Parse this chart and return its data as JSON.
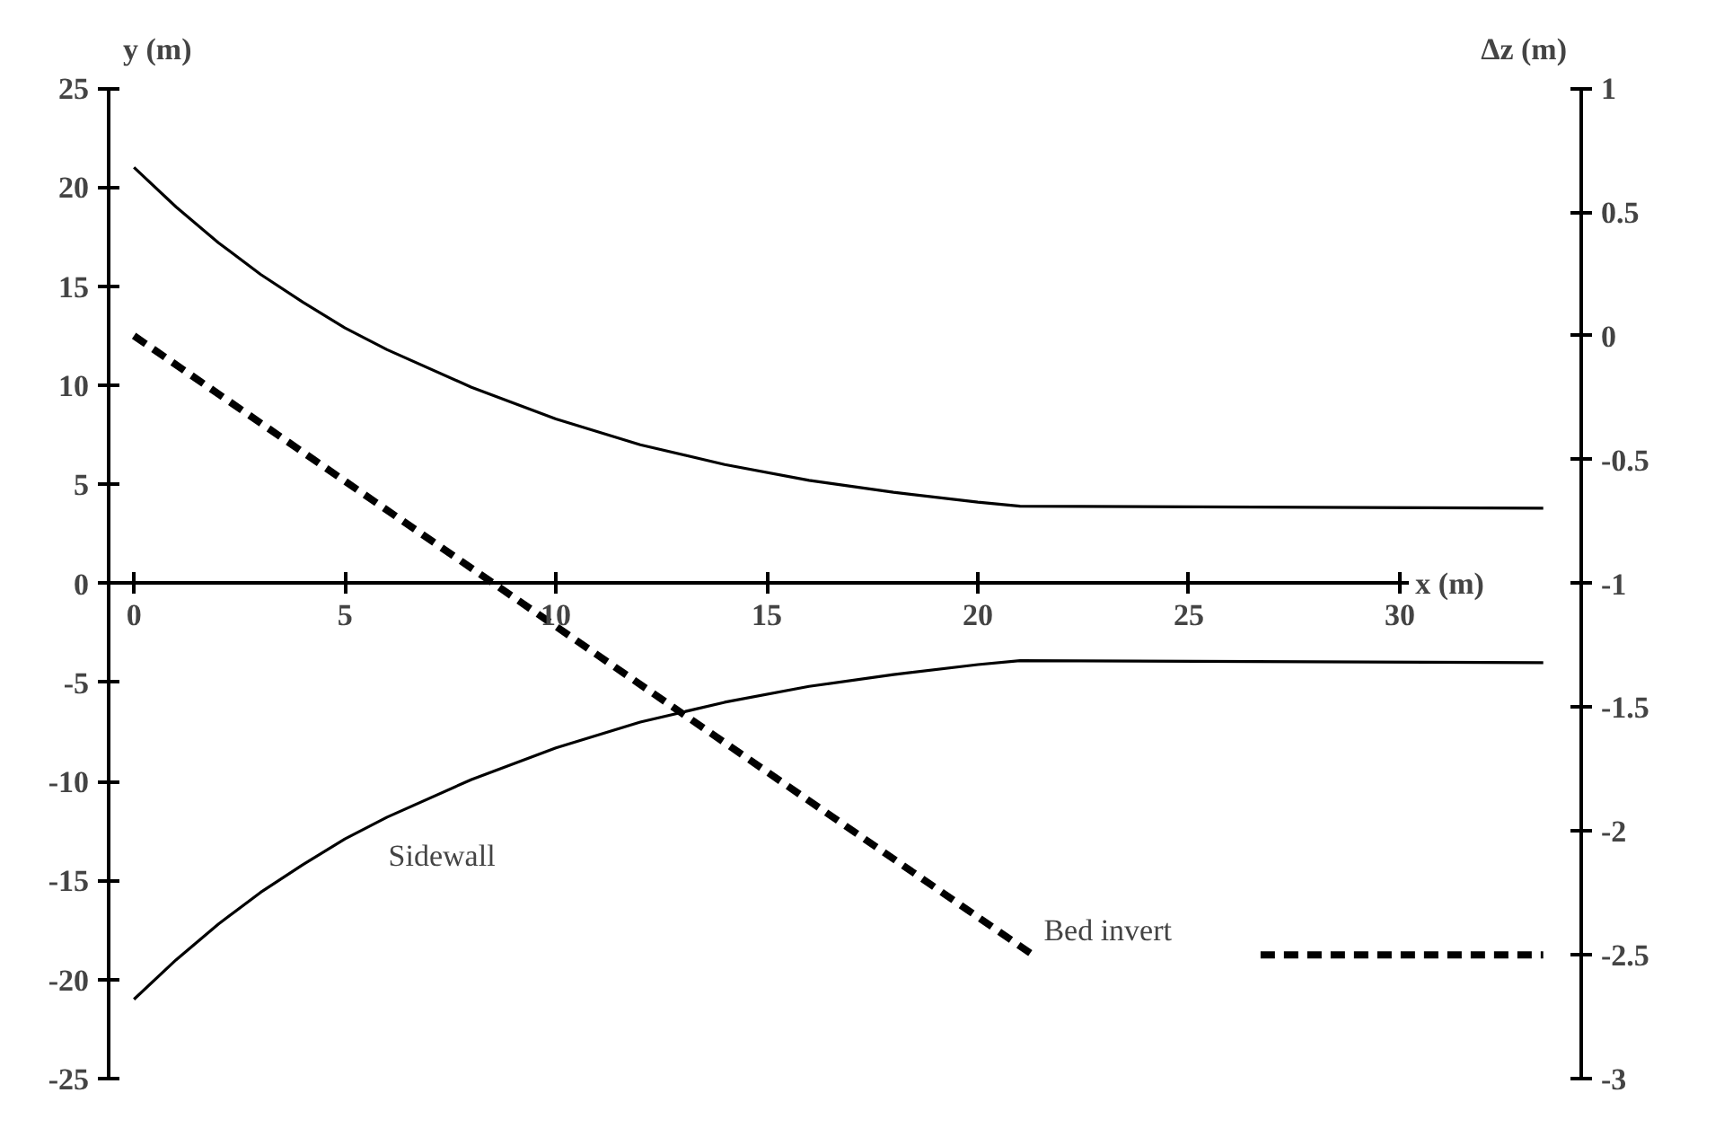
{
  "chart_data": {
    "type": "line",
    "ylabel": "y (m)",
    "y2label": "Δz (m)",
    "xlabel": "x (m)",
    "xlim": [
      -0.6,
      34.3
    ],
    "xticks": [
      0,
      5,
      10,
      15,
      20,
      25,
      30
    ],
    "ylim": [
      -25,
      25
    ],
    "yticks": [
      -25,
      -20,
      -15,
      -10,
      -5,
      0,
      5,
      10,
      15,
      20,
      25
    ],
    "y2lim": [
      -3,
      1
    ],
    "y2ticks": [
      -3,
      -2.5,
      -2,
      -1.5,
      -1,
      -0.5,
      0,
      0.5,
      1
    ],
    "grid": false,
    "marker": "none",
    "series": [
      {
        "color": "#000000",
        "line_style": "solid",
        "x": [
          0,
          1,
          2,
          3,
          4,
          5,
          6,
          8,
          10,
          12,
          14,
          16,
          18,
          20,
          21,
          33.4
        ],
        "values": [
          21,
          19,
          17.2,
          15.6,
          14.2,
          12.9,
          11.8,
          9.9,
          8.3,
          7.0,
          6.0,
          5.2,
          4.6,
          4.1,
          3.9,
          3.8
        ]
      },
      {
        "color": "#000000",
        "line_style": "solid",
        "x": [
          0,
          1,
          2,
          3,
          4,
          5,
          6,
          8,
          10,
          12,
          14,
          16,
          18,
          20,
          21,
          33.4
        ],
        "values": [
          -21,
          -19,
          -17.2,
          -15.6,
          -14.2,
          -12.9,
          -11.8,
          -9.9,
          -8.3,
          -7.0,
          -6.0,
          -5.2,
          -4.6,
          -4.1,
          -3.9,
          -4.0
        ]
      },
      {
        "color": "#000000",
        "line_style": "dashed",
        "axis": "y2",
        "x": [
          0,
          21.3,
          24,
          26.7,
          33.4
        ],
        "values": [
          0.0,
          -2.5,
          null,
          -2.5,
          -2.5
        ]
      }
    ],
    "annotations": [
      "Sidewall",
      "Bed invert"
    ]
  }
}
